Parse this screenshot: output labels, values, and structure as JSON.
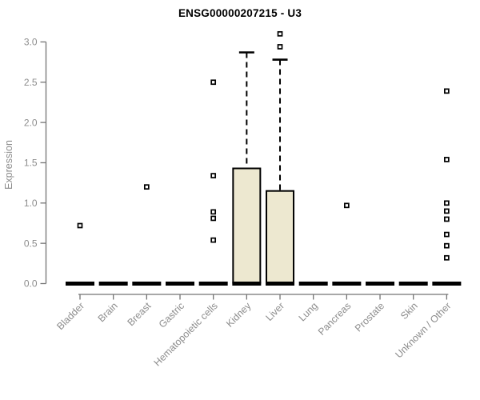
{
  "chart_data": {
    "type": "boxplot",
    "title": "ENSG00000207215 - U3",
    "ylabel": "Expression",
    "xlabel": "",
    "ylim": [
      0.0,
      3.1
    ],
    "ytick_labels": [
      "0.0",
      "0.5",
      "1.0",
      "1.5",
      "2.0",
      "2.5",
      "3.0"
    ],
    "grid": "off",
    "legend": "none",
    "categories": [
      "Bladder",
      "Brain",
      "Breast",
      "Gastric",
      "Hematopoietic cells",
      "Kidney",
      "Liver",
      "Lung",
      "Pancreas",
      "Prostate",
      "Skin",
      "Unknown / Other"
    ],
    "boxes": [
      {
        "category": "Bladder",
        "q1": 0,
        "median": 0,
        "q3": 0,
        "whisker_low": 0,
        "whisker_high": 0,
        "outliers": [
          0.72
        ]
      },
      {
        "category": "Brain",
        "q1": 0,
        "median": 0,
        "q3": 0,
        "whisker_low": 0,
        "whisker_high": 0,
        "outliers": []
      },
      {
        "category": "Breast",
        "q1": 0,
        "median": 0,
        "q3": 0,
        "whisker_low": 0,
        "whisker_high": 0,
        "outliers": [
          1.2
        ]
      },
      {
        "category": "Gastric",
        "q1": 0,
        "median": 0,
        "q3": 0,
        "whisker_low": 0,
        "whisker_high": 0,
        "outliers": []
      },
      {
        "category": "Hematopoietic cells",
        "q1": 0,
        "median": 0,
        "q3": 0,
        "whisker_low": 0,
        "whisker_high": 0,
        "outliers": [
          2.5,
          1.34,
          0.89,
          0.81,
          0.54
        ]
      },
      {
        "category": "Kidney",
        "q1": 0,
        "median": 0,
        "q3": 1.43,
        "whisker_low": 0,
        "whisker_high": 2.87,
        "outliers": []
      },
      {
        "category": "Liver",
        "q1": 0,
        "median": 0,
        "q3": 1.15,
        "whisker_low": 0,
        "whisker_high": 2.78,
        "outliers": [
          2.94,
          3.1
        ]
      },
      {
        "category": "Lung",
        "q1": 0,
        "median": 0,
        "q3": 0,
        "whisker_low": 0,
        "whisker_high": 0,
        "outliers": []
      },
      {
        "category": "Pancreas",
        "q1": 0,
        "median": 0,
        "q3": 0,
        "whisker_low": 0,
        "whisker_high": 0,
        "outliers": [
          0.97
        ]
      },
      {
        "category": "Prostate",
        "q1": 0,
        "median": 0,
        "q3": 0,
        "whisker_low": 0,
        "whisker_high": 0,
        "outliers": []
      },
      {
        "category": "Skin",
        "q1": 0,
        "median": 0,
        "q3": 0,
        "whisker_low": 0,
        "whisker_high": 0,
        "outliers": []
      },
      {
        "category": "Unknown / Other",
        "q1": 0,
        "median": 0,
        "q3": 0,
        "whisker_low": 0,
        "whisker_high": 0,
        "outliers": [
          2.39,
          1.54,
          1.0,
          0.9,
          0.8,
          0.61,
          0.47,
          0.32
        ]
      }
    ]
  },
  "colors": {
    "box_fill": "#ede8d0",
    "box_border": "#000000",
    "median": "#000000",
    "whisker": "#000000",
    "outlier_fill": "#ffffff",
    "outlier_border": "#000000",
    "axis_line": "#737373",
    "tick_label": "#8c8c8c",
    "title": "#000000",
    "background": "#ffffff"
  }
}
